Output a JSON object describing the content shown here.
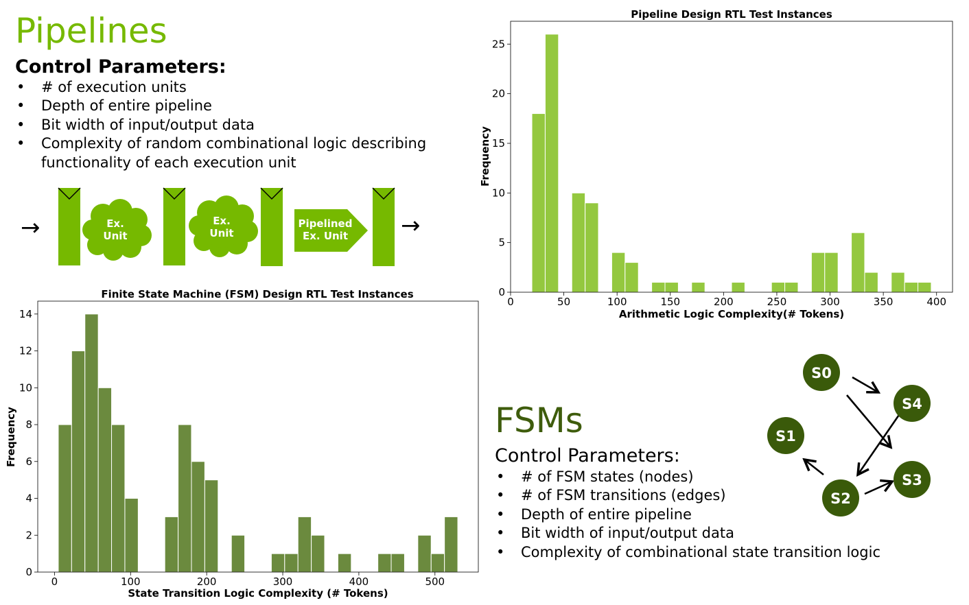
{
  "pipelines": {
    "title": "Pipelines",
    "control_title": "Control Parameters:",
    "params": [
      "# of execution units",
      "Depth of entire pipeline",
      "Bit width of input/output data",
      "Complexity of random combinational logic describing functionality of each execution unit"
    ],
    "diagram": {
      "input_arrow": "→",
      "output_arrow": "→",
      "unit1": [
        "Ex.",
        "Unit"
      ],
      "unit2": [
        "Ex.",
        "Unit"
      ],
      "unit3": [
        "Pipelined",
        "Ex. Unit"
      ],
      "color": "#76b900"
    }
  },
  "fsms": {
    "title": "FSMs",
    "control_title": "Control Parameters:",
    "params": [
      "# of FSM states (nodes)",
      "# of FSM transitions (edges)",
      "Depth of entire pipeline",
      "Bit width of input/output data",
      "Complexity of combinational state transition logic"
    ],
    "graph": {
      "node_color": "#3a5a0a",
      "nodes": [
        "S0",
        "S4",
        "S1",
        "S3",
        "S2"
      ]
    }
  },
  "chart_data": [
    {
      "type": "bar",
      "title": "Pipeline Design RTL Test Instances",
      "xlabel": "Arithmetic Logic Complexity(# Tokens)",
      "ylabel": "Frequency",
      "color": "#94c83f",
      "xlim": [
        0,
        415
      ],
      "ylim": [
        0,
        27.3
      ],
      "xticks": [
        0,
        50,
        100,
        150,
        200,
        250,
        300,
        350,
        400
      ],
      "yticks": [
        0,
        5,
        10,
        15,
        20,
        25
      ],
      "bin_width": 12.5,
      "bins": [
        {
          "x0": 20,
          "value": 18
        },
        {
          "x0": 32.5,
          "value": 26
        },
        {
          "x0": 57.5,
          "value": 10
        },
        {
          "x0": 70,
          "value": 9
        },
        {
          "x0": 95,
          "value": 4
        },
        {
          "x0": 107.5,
          "value": 3
        },
        {
          "x0": 132.5,
          "value": 1
        },
        {
          "x0": 145,
          "value": 1
        },
        {
          "x0": 170,
          "value": 1
        },
        {
          "x0": 207.5,
          "value": 1
        },
        {
          "x0": 245,
          "value": 1
        },
        {
          "x0": 257.5,
          "value": 1
        },
        {
          "x0": 282.5,
          "value": 4
        },
        {
          "x0": 295,
          "value": 4
        },
        {
          "x0": 320,
          "value": 6
        },
        {
          "x0": 332.5,
          "value": 2
        },
        {
          "x0": 357.5,
          "value": 2
        },
        {
          "x0": 370,
          "value": 1
        },
        {
          "x0": 382.5,
          "value": 1
        }
      ]
    },
    {
      "type": "bar",
      "title": "Finite State Machine (FSM) Design RTL Test Instances",
      "xlabel": "State Transition Logic Complexity (# Tokens)",
      "ylabel": "Frequency",
      "color": "#6b8a3e",
      "xlim": [
        -22,
        557
      ],
      "ylim": [
        0,
        14.7
      ],
      "xticks": [
        0,
        100,
        200,
        300,
        400,
        500
      ],
      "yticks": [
        0,
        2,
        4,
        6,
        8,
        10,
        12,
        14
      ],
      "bin_width": 17.5,
      "bins": [
        {
          "x0": 5,
          "value": 8
        },
        {
          "x0": 22.5,
          "value": 12
        },
        {
          "x0": 40,
          "value": 14
        },
        {
          "x0": 57.5,
          "value": 10
        },
        {
          "x0": 75,
          "value": 8
        },
        {
          "x0": 92.5,
          "value": 4
        },
        {
          "x0": 145,
          "value": 3
        },
        {
          "x0": 162.5,
          "value": 8
        },
        {
          "x0": 180,
          "value": 6
        },
        {
          "x0": 197.5,
          "value": 5
        },
        {
          "x0": 232.5,
          "value": 2
        },
        {
          "x0": 285,
          "value": 1
        },
        {
          "x0": 302.5,
          "value": 1
        },
        {
          "x0": 320,
          "value": 3
        },
        {
          "x0": 337.5,
          "value": 2
        },
        {
          "x0": 372.5,
          "value": 1
        },
        {
          "x0": 425,
          "value": 1
        },
        {
          "x0": 442.5,
          "value": 1
        },
        {
          "x0": 477.5,
          "value": 2
        },
        {
          "x0": 495,
          "value": 1
        },
        {
          "x0": 512.5,
          "value": 3
        }
      ]
    }
  ]
}
